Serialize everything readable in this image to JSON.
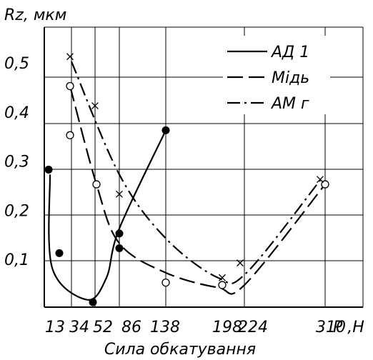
{
  "chart_data": {
    "type": "line",
    "ylabel": "Rz, мкм",
    "xlabel": "Сила обкатування",
    "x_unit_label": "P ,H",
    "x_tick_labels": [
      "13",
      "34",
      "52",
      "86",
      "138",
      "198",
      "224",
      "310"
    ],
    "y_tick_labels": [
      "0,1",
      "0,2",
      "0,3",
      "0,4",
      "0,5"
    ],
    "ylim": [
      0,
      0.57
    ],
    "grid": true,
    "legend_position": "top-right",
    "series": [
      {
        "name": "АД 1",
        "line_style": "solid",
        "marker": "filled-circle",
        "points": [
          {
            "x": "13",
            "y": 0.28
          },
          {
            "x": "13",
            "y": 0.11
          },
          {
            "x": "34",
            "y": 0.01
          },
          {
            "x": "86",
            "y": 0.15
          },
          {
            "x": "86",
            "y": 0.12
          },
          {
            "x": "138",
            "y": 0.36
          }
        ],
        "curve": [
          {
            "x": "13",
            "y": 0.27
          },
          {
            "x": "13",
            "y": 0.08
          },
          {
            "x": "34",
            "y": 0.015
          },
          {
            "x": "52",
            "y": 0.06
          },
          {
            "x": "86",
            "y": 0.16
          },
          {
            "x": "138",
            "y": 0.36
          }
        ]
      },
      {
        "name": "Мідь",
        "line_style": "dashed",
        "marker": "open-circle",
        "points": [
          {
            "x": "34",
            "y": 0.45
          },
          {
            "x": "34",
            "y": 0.35
          },
          {
            "x": "52",
            "y": 0.25
          },
          {
            "x": "138",
            "y": 0.05
          },
          {
            "x": "198",
            "y": 0.045
          },
          {
            "x": "310",
            "y": 0.25
          }
        ],
        "curve": [
          {
            "x": "34",
            "y": 0.45
          },
          {
            "x": "52",
            "y": 0.25
          },
          {
            "x": "86",
            "y": 0.13
          },
          {
            "x": "138",
            "y": 0.07
          },
          {
            "x": "198",
            "y": 0.04
          },
          {
            "x": "224",
            "y": 0.045
          },
          {
            "x": "310",
            "y": 0.25
          }
        ]
      },
      {
        "name": "АМ г",
        "line_style": "dash-dot",
        "marker": "cross",
        "points": [
          {
            "x": "34",
            "y": 0.51
          },
          {
            "x": "52",
            "y": 0.41
          },
          {
            "x": "86",
            "y": 0.23
          },
          {
            "x": "198",
            "y": 0.06
          },
          {
            "x": "224",
            "y": 0.09
          },
          {
            "x": "310",
            "y": 0.26
          }
        ],
        "curve": [
          {
            "x": "34",
            "y": 0.5
          },
          {
            "x": "86",
            "y": 0.27
          },
          {
            "x": "138",
            "y": 0.14
          },
          {
            "x": "198",
            "y": 0.06
          },
          {
            "x": "224",
            "y": 0.07
          },
          {
            "x": "310",
            "y": 0.26
          }
        ]
      }
    ]
  }
}
